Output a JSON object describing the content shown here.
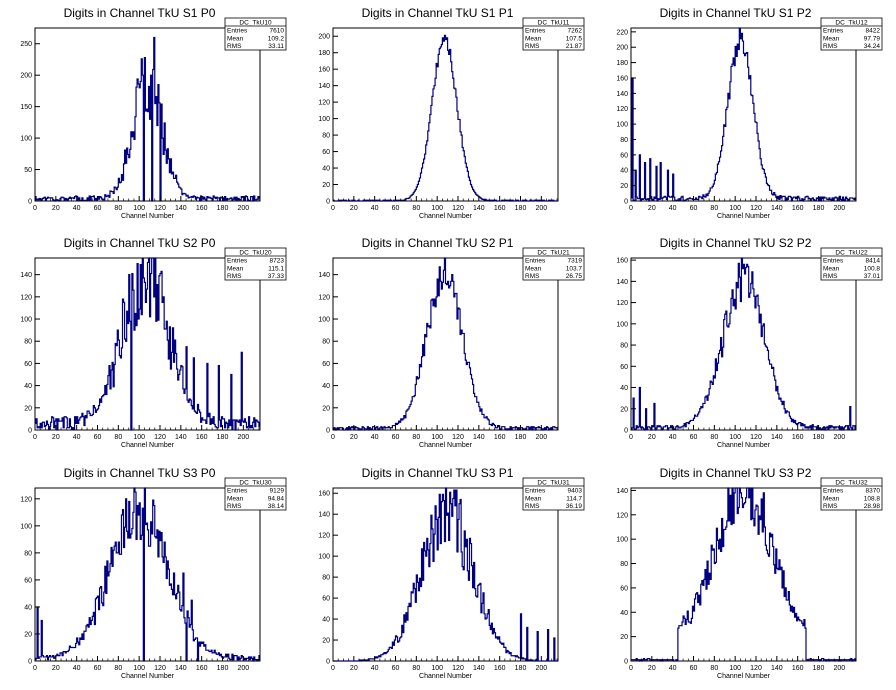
{
  "colors": {
    "series": "#000080",
    "axis": "#000000",
    "background": "#ffffff"
  },
  "chart_data": [
    {
      "type": "histogram",
      "title": "Digits in Channel TkU S1 P0",
      "xlabel": "Channel Number",
      "xlim": [
        0,
        216
      ],
      "ylim": [
        0,
        275
      ],
      "xticks": [
        0,
        20,
        40,
        60,
        80,
        100,
        120,
        140,
        160,
        180,
        200
      ],
      "yticks": [
        0,
        50,
        100,
        150,
        200,
        250
      ],
      "stats": {
        "name": "DC_TkU10",
        "entries": "7610",
        "mean": "109.2",
        "rms": "33.11"
      },
      "profile": {
        "shape": "gauss",
        "mean": 108,
        "sigma": 14,
        "peak": 185,
        "noise": 0.3,
        "floor": 8,
        "spikes": [
          [
            101,
            190
          ],
          [
            103,
            200
          ],
          [
            104,
            0
          ],
          [
            110,
            130
          ],
          [
            112,
            0
          ],
          [
            114,
            260
          ],
          [
            117,
            120
          ],
          [
            120,
            0
          ],
          [
            122,
            100
          ]
        ]
      }
    },
    {
      "type": "histogram",
      "title": "Digits in Channel TkU S1 P1",
      "xlabel": "Channel Number",
      "xlim": [
        0,
        216
      ],
      "ylim": [
        0,
        210
      ],
      "xticks": [
        0,
        20,
        40,
        60,
        80,
        100,
        120,
        140,
        160,
        180,
        200
      ],
      "yticks": [
        0,
        20,
        40,
        60,
        80,
        100,
        120,
        140,
        160,
        180,
        200
      ],
      "stats": {
        "name": "DC_TkU11",
        "entries": "7262",
        "mean": "107.5",
        "rms": "21.87"
      },
      "profile": {
        "shape": "gauss",
        "mean": 107,
        "sigma": 12,
        "peak": 195,
        "noise": 0.05,
        "floor": 1,
        "spikes": []
      }
    },
    {
      "type": "histogram",
      "title": "Digits in Channel TkU S1 P2",
      "xlabel": "Channel Number",
      "xlim": [
        0,
        216
      ],
      "ylim": [
        0,
        225
      ],
      "xticks": [
        0,
        20,
        40,
        60,
        80,
        100,
        120,
        140,
        160,
        180,
        200
      ],
      "yticks": [
        0,
        20,
        40,
        60,
        80,
        100,
        120,
        140,
        160,
        180,
        200,
        220
      ],
      "stats": {
        "name": "DC_TkU12",
        "entries": "8422",
        "mean": "97.79",
        "rms": "34.24"
      },
      "profile": {
        "shape": "gauss",
        "mean": 105,
        "sigma": 12,
        "peak": 208,
        "noise": 0.08,
        "floor": 6,
        "spikes": [
          [
            1,
            160
          ],
          [
            4,
            40
          ],
          [
            8,
            60
          ],
          [
            13,
            50
          ],
          [
            18,
            55
          ],
          [
            24,
            45
          ],
          [
            28,
            50
          ],
          [
            35,
            40
          ],
          [
            40,
            35
          ]
        ]
      }
    },
    {
      "type": "histogram",
      "title": "Digits in Channel TkU S2 P0",
      "xlabel": "Channel Number",
      "xlim": [
        0,
        216
      ],
      "ylim": [
        0,
        155
      ],
      "xticks": [
        0,
        20,
        40,
        60,
        80,
        100,
        120,
        140,
        160,
        180,
        200
      ],
      "yticks": [
        0,
        20,
        40,
        60,
        80,
        100,
        120,
        140
      ],
      "stats": {
        "name": "DC_TkU20",
        "entries": "8723",
        "mean": "115.1",
        "rms": "37.33"
      },
      "profile": {
        "shape": "gauss",
        "mean": 106,
        "sigma": 22,
        "peak": 135,
        "noise": 0.3,
        "floor": 12,
        "spikes": [
          [
            92,
            0
          ],
          [
            96,
            105
          ],
          [
            145,
            75
          ],
          [
            152,
            65
          ],
          [
            165,
            60
          ],
          [
            176,
            58
          ],
          [
            188,
            50
          ],
          [
            198,
            70
          ]
        ]
      }
    },
    {
      "type": "histogram",
      "title": "Digits in Channel TkU S2 P1",
      "xlabel": "Channel Number",
      "xlim": [
        0,
        216
      ],
      "ylim": [
        0,
        155
      ],
      "xticks": [
        0,
        20,
        40,
        60,
        80,
        100,
        120,
        140,
        160,
        180,
        200
      ],
      "yticks": [
        0,
        20,
        40,
        60,
        80,
        100,
        120,
        140
      ],
      "stats": {
        "name": "DC_TkU21",
        "entries": "7319",
        "mean": "103.7",
        "rms": "26.75"
      },
      "profile": {
        "shape": "gauss",
        "mean": 107,
        "sigma": 17,
        "peak": 140,
        "noise": 0.12,
        "floor": 3,
        "spikes": []
      }
    },
    {
      "type": "histogram",
      "title": "Digits in Channel TkU S2 P2",
      "xlabel": "Channel Number",
      "xlim": [
        0,
        216
      ],
      "ylim": [
        0,
        162
      ],
      "xticks": [
        0,
        20,
        40,
        60,
        80,
        100,
        120,
        140,
        160,
        180,
        200
      ],
      "yticks": [
        0,
        20,
        40,
        60,
        80,
        100,
        120,
        140,
        160
      ],
      "stats": {
        "name": "DC_TkU22",
        "entries": "8414",
        "mean": "100.8",
        "rms": "37.01"
      },
      "profile": {
        "shape": "gauss",
        "mean": 108,
        "sigma": 20,
        "peak": 138,
        "noise": 0.18,
        "floor": 4,
        "spikes": [
          [
            2,
            30
          ],
          [
            8,
            40
          ],
          [
            14,
            20
          ],
          [
            22,
            25
          ],
          [
            210,
            22
          ]
        ]
      }
    },
    {
      "type": "histogram",
      "title": "Digits in Channel TkU S3 P0",
      "xlabel": "Channel Number",
      "xlim": [
        0,
        216
      ],
      "ylim": [
        0,
        128
      ],
      "xticks": [
        0,
        20,
        40,
        60,
        80,
        100,
        120,
        140,
        160,
        180,
        200
      ],
      "yticks": [
        0,
        20,
        40,
        60,
        80,
        100,
        120
      ],
      "stats": {
        "name": "DC_TkU30",
        "entries": "9129",
        "mean": "94.84",
        "rms": "38.14"
      },
      "profile": {
        "shape": "gauss",
        "mean": 100,
        "sigma": 28,
        "peak": 108,
        "noise": 0.22,
        "floor": 4,
        "spikes": [
          [
            2,
            40
          ],
          [
            6,
            30
          ],
          [
            104,
            0
          ],
          [
            142,
            65
          ],
          [
            145,
            0
          ],
          [
            150,
            45
          ],
          [
            156,
            0
          ]
        ]
      }
    },
    {
      "type": "histogram",
      "title": "Digits in Channel TkU S3 P1",
      "xlabel": "Channel Number",
      "xlim": [
        0,
        216
      ],
      "ylim": [
        0,
        165
      ],
      "xticks": [
        0,
        20,
        40,
        60,
        80,
        100,
        120,
        140,
        160,
        180,
        200
      ],
      "yticks": [
        0,
        20,
        40,
        60,
        80,
        100,
        120,
        140,
        160
      ],
      "stats": {
        "name": "DC_TkU31",
        "entries": "9403",
        "mean": "114.7",
        "rms": "36.19"
      },
      "profile": {
        "shape": "gauss",
        "mean": 110,
        "sigma": 25,
        "peak": 140,
        "noise": 0.25,
        "floor": 0,
        "spikes": [
          [
            115,
            155
          ],
          [
            120,
            135
          ],
          [
            180,
            45
          ],
          [
            186,
            32
          ],
          [
            196,
            28
          ],
          [
            206,
            30
          ],
          [
            212,
            22
          ]
        ]
      }
    },
    {
      "type": "histogram",
      "title": "Digits in Channel TkU S3 P2",
      "xlabel": "Channel Number",
      "xlim": [
        0,
        216
      ],
      "ylim": [
        0,
        142
      ],
      "xticks": [
        0,
        20,
        40,
        60,
        80,
        100,
        120,
        140,
        160,
        180,
        200
      ],
      "yticks": [
        0,
        20,
        40,
        60,
        80,
        100,
        120,
        140
      ],
      "stats": {
        "name": "DC_TkU32",
        "entries": "8370",
        "mean": "108.8",
        "rms": "28.98"
      },
      "profile": {
        "shape": "plateau",
        "lo": 45,
        "hi": 168,
        "mean": 108,
        "sigma": 26,
        "peak": 125,
        "noise": 0.2,
        "floor": 1,
        "spikes": []
      }
    }
  ],
  "labels": {
    "entries": "Entries",
    "mean": "Mean",
    "rms": "RMS"
  }
}
